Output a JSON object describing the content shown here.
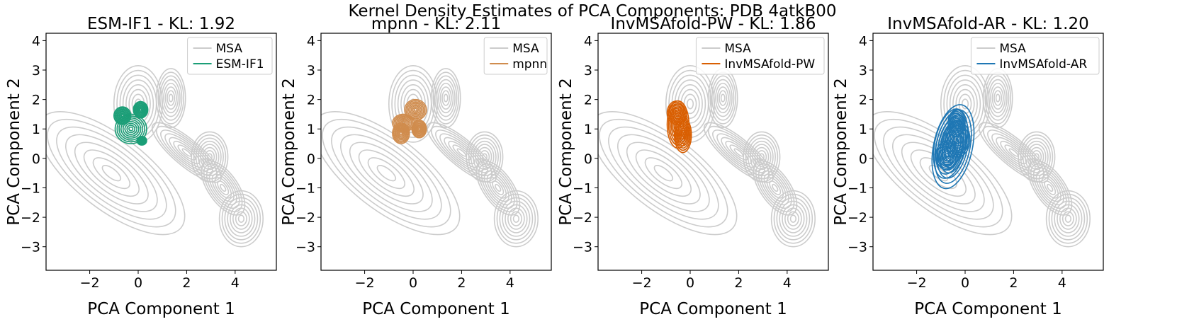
{
  "chart_data": {
    "suptitle": "Kernel Density Estimates of PCA Components: PDB 4atkB00",
    "type": "kde-contour",
    "xlim": [
      -3.8,
      5.7
    ],
    "ylim": [
      -3.8,
      4.25
    ],
    "xticks": [
      -2,
      0,
      2,
      4
    ],
    "xtick_labels": [
      "−2",
      "0",
      "2",
      "4"
    ],
    "yticks": [
      -3,
      -2,
      -1,
      0,
      1,
      2,
      3,
      4
    ],
    "ytick_labels": [
      "−3",
      "−2",
      "−1",
      "0",
      "1",
      "2",
      "3",
      "4"
    ],
    "xlabel": "PCA Component 1",
    "ylabel": "PCA Component 2",
    "reference": {
      "name": "MSA",
      "color": "#cccccc",
      "levels": 8,
      "components": [
        {
          "cx": -1.1,
          "cy": -0.5,
          "sx": 1.5,
          "sy": 3.0,
          "rot": 52
        },
        {
          "cx": 0.0,
          "cy": 1.85,
          "sx": 1.0,
          "sy": 1.3,
          "rot": 0
        },
        {
          "cx": 1.35,
          "cy": 2.05,
          "sx": 0.6,
          "sy": 1.0,
          "rot": 0
        },
        {
          "cx": 2.95,
          "cy": 0.05,
          "sx": 0.75,
          "sy": 0.85,
          "rot": 0
        },
        {
          "cx": 4.25,
          "cy": -2.05,
          "sx": 0.9,
          "sy": 0.95,
          "rot": 0
        },
        {
          "cx": 2.0,
          "cy": 0.2,
          "sx": 1.8,
          "sy": 0.45,
          "rot": -40
        },
        {
          "cx": 3.5,
          "cy": -1.0,
          "sx": 1.3,
          "sy": 0.5,
          "rot": -55
        }
      ]
    },
    "panels": [
      {
        "title": "ESM-IF1 - KL: 1.92",
        "method": "ESM-IF1",
        "kl": 1.92,
        "color": "#1b9e77",
        "legend_labels": [
          "MSA",
          "ESM-IF1"
        ],
        "levels": 8,
        "components": [
          {
            "cx": -0.65,
            "cy": 1.45,
            "sx": 0.35,
            "sy": 0.3,
            "rot": 0
          },
          {
            "cx": 0.1,
            "cy": 1.65,
            "sx": 0.3,
            "sy": 0.28,
            "rot": 0
          },
          {
            "cx": -0.3,
            "cy": 1.0,
            "sx": 0.65,
            "sy": 0.5,
            "rot": 0
          },
          {
            "cx": 0.15,
            "cy": 0.6,
            "sx": 0.2,
            "sy": 0.15,
            "rot": 0
          }
        ]
      },
      {
        "title": "mpnn - KL: 2.11",
        "method": "mpnn",
        "kl": 2.11,
        "color": "#d08c4d",
        "legend_labels": [
          "MSA",
          "mpnn"
        ],
        "levels": 8,
        "components": [
          {
            "cx": 0.1,
            "cy": 1.65,
            "sx": 0.45,
            "sy": 0.35,
            "rot": 0
          },
          {
            "cx": -0.4,
            "cy": 1.2,
            "sx": 0.45,
            "sy": 0.3,
            "rot": 0
          },
          {
            "cx": -0.5,
            "cy": 0.85,
            "sx": 0.35,
            "sy": 0.35,
            "rot": 0
          },
          {
            "cx": 0.25,
            "cy": 1.0,
            "sx": 0.3,
            "sy": 0.3,
            "rot": 0
          }
        ]
      },
      {
        "title": "InvMSAfold-PW - KL: 1.86",
        "method": "InvMSAfold-PW",
        "kl": 1.86,
        "color": "#d95f02",
        "legend_labels": [
          "MSA",
          "InvMSAfold-PW"
        ],
        "levels": 8,
        "components": [
          {
            "cx": -0.55,
            "cy": 1.55,
            "sx": 0.4,
            "sy": 0.4,
            "rot": 0
          },
          {
            "cx": -0.3,
            "cy": 0.8,
            "sx": 0.35,
            "sy": 0.6,
            "rot": 0
          },
          {
            "cx": -0.5,
            "cy": 1.15,
            "sx": 0.45,
            "sy": 0.8,
            "rot": 0
          }
        ]
      },
      {
        "title": "InvMSAfold-AR - KL: 1.20",
        "method": "InvMSAfold-AR",
        "kl": 1.2,
        "color": "#1f77b4",
        "legend_labels": [
          "MSA",
          "InvMSAfold-AR"
        ],
        "levels": 8,
        "components": [
          {
            "cx": -0.6,
            "cy": 0.5,
            "sx": 0.65,
            "sy": 1.2,
            "rot": -12
          },
          {
            "cx": -0.5,
            "cy": 0.4,
            "sx": 0.8,
            "sy": 1.45,
            "rot": -12
          },
          {
            "cx": -0.3,
            "cy": 0.65,
            "sx": 0.5,
            "sy": 0.6,
            "rot": 0
          },
          {
            "cx": -0.75,
            "cy": 0.1,
            "sx": 0.45,
            "sy": 0.5,
            "rot": 0
          },
          {
            "cx": -0.35,
            "cy": 1.2,
            "sx": 0.35,
            "sy": 0.45,
            "rot": 0
          }
        ]
      }
    ]
  }
}
